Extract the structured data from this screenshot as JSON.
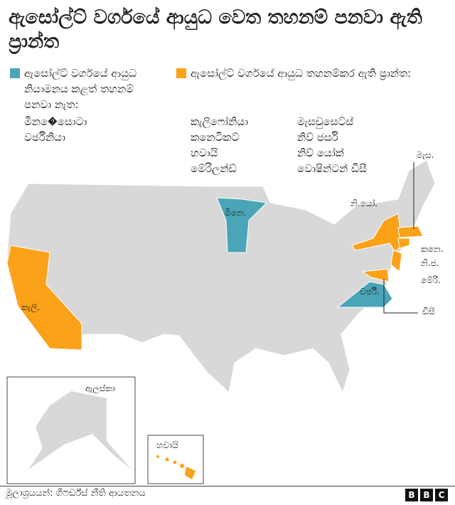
{
  "title": "ඇසෝල්ට් වර්ගයේ ආයුධ වෙත තහනම් පනවා ඇති ප්‍රාන්ත",
  "legend": {
    "no_ban": {
      "label": "ඇසෝල්ට් වර්ගයේ ආයුධ නියාමනය කළත් තහනම් පනවා නැත:",
      "color": "#4aa5b8",
      "states": [
        "මින�ෙසොටා",
        "වර්ජීනියා"
      ]
    },
    "ban": {
      "label": "ඇසෝල්ට් වර්ගයේ ආයුධ තහනම්කර ඇති ප්‍රාන්ත:",
      "color": "#fba219",
      "states_col1": [
        "කැලිෆෝනියා",
        "කනෙටිකට්",
        "හවායි",
        "මේරිලන්ඩ්"
      ],
      "states_col2": [
        "මැසචුසෙට්ස්",
        "නිව් ජර්සි",
        "නිව් යෝක්",
        "වොෂින්ටන් ඩීසී"
      ]
    }
  },
  "map_labels": {
    "mn": "මිනෙ.",
    "ny": "නි.යෝ.",
    "ma": "මැස.",
    "ct": "කනෙ.",
    "nj": "නි.ජ.",
    "md": "මේරි.",
    "va": "වර්ජී.",
    "dc": "ඩීසී",
    "ca": "කැලි.",
    "ak": "ඇලස්කා",
    "hi": "හවායි"
  },
  "base_color": "#d8d8d8",
  "footer": {
    "source": "මූලාශ්‍රයයන්: ගිෆර්ඩ්ස් නීති ආයතනය",
    "logo": [
      "B",
      "B",
      "C"
    ]
  }
}
